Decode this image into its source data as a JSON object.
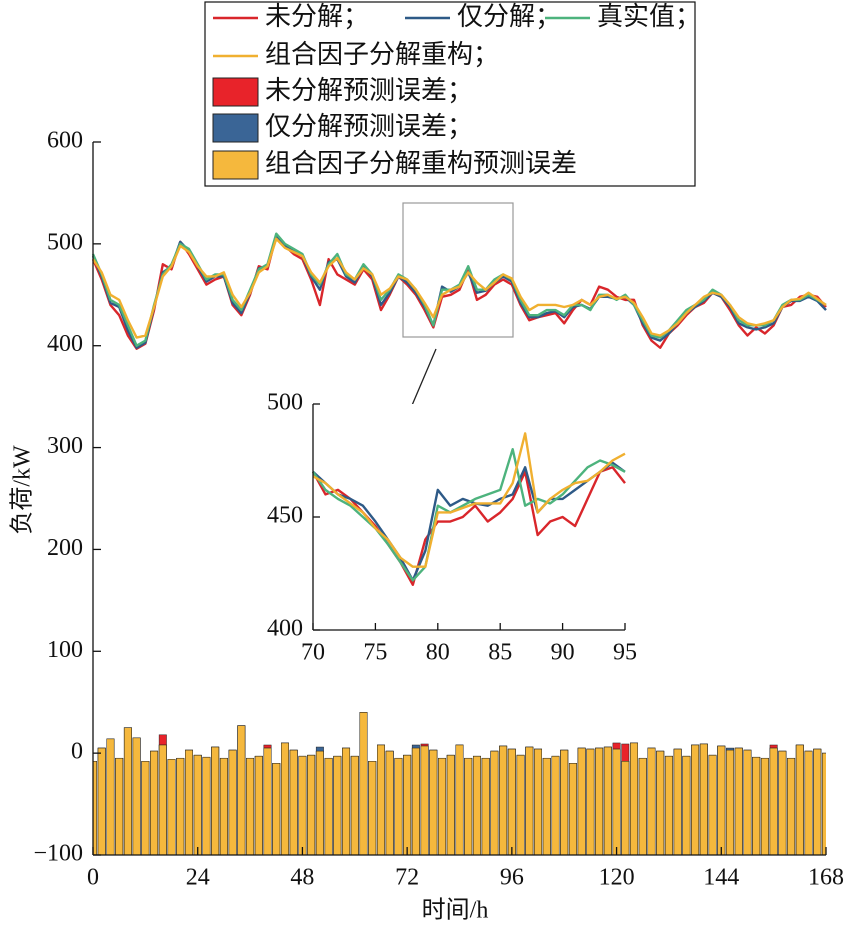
{
  "chart_data": [
    {
      "type": "line",
      "ylabel": "负荷/kW",
      "xlabel": "时间/h",
      "xlim": [
        0,
        168
      ],
      "xticks": [
        0,
        24,
        48,
        72,
        96,
        120,
        144,
        168
      ],
      "ylim": [
        -100,
        600
      ],
      "yticks": [
        {
          "value": -100,
          "label": "−100"
        },
        0,
        100,
        200,
        300,
        400,
        500,
        600
      ],
      "x": [
        0,
        2,
        4,
        6,
        8,
        10,
        12,
        14,
        16,
        18,
        20,
        22,
        24,
        26,
        28,
        30,
        32,
        34,
        36,
        38,
        40,
        42,
        44,
        46,
        48,
        50,
        52,
        54,
        56,
        58,
        60,
        62,
        64,
        66,
        68,
        70,
        72,
        74,
        76,
        78,
        80,
        82,
        84,
        86,
        88,
        90,
        92,
        94,
        96,
        98,
        100,
        102,
        104,
        106,
        108,
        110,
        112,
        114,
        116,
        118,
        120,
        122,
        124,
        126,
        128,
        130,
        132,
        134,
        136,
        138,
        140,
        142,
        144,
        146,
        148,
        150,
        152,
        154,
        156,
        158,
        160,
        162,
        164,
        166,
        168
      ],
      "series": [
        {
          "name": "未分解；",
          "type": "line",
          "color": "#d9262b",
          "values": [
            485,
            465,
            440,
            430,
            410,
            397,
            402,
            435,
            480,
            475,
            502,
            490,
            475,
            460,
            465,
            468,
            440,
            430,
            450,
            478,
            475,
            508,
            498,
            490,
            485,
            465,
            440,
            485,
            470,
            465,
            460,
            475,
            465,
            435,
            450,
            468,
            460,
            450,
            435,
            418,
            448,
            450,
            455,
            475,
            445,
            450,
            460,
            465,
            460,
            440,
            425,
            428,
            430,
            432,
            422,
            435,
            445,
            440,
            458,
            455,
            448,
            445,
            445,
            420,
            405,
            398,
            412,
            420,
            430,
            438,
            442,
            452,
            448,
            435,
            420,
            410,
            418,
            412,
            420,
            438,
            440,
            448,
            450,
            448,
            438
          ]
        },
        {
          "name": "仅分解；",
          "type": "line",
          "color": "#2e5a87",
          "values": [
            488,
            468,
            442,
            438,
            415,
            398,
            403,
            438,
            472,
            478,
            502,
            493,
            478,
            463,
            468,
            468,
            442,
            432,
            452,
            476,
            478,
            508,
            498,
            493,
            488,
            468,
            455,
            482,
            485,
            468,
            462,
            478,
            468,
            440,
            452,
            468,
            462,
            452,
            438,
            420,
            458,
            453,
            458,
            472,
            452,
            454,
            462,
            468,
            463,
            442,
            428,
            428,
            432,
            434,
            428,
            438,
            440,
            436,
            448,
            448,
            446,
            448,
            440,
            422,
            408,
            405,
            412,
            422,
            432,
            438,
            444,
            452,
            448,
            438,
            422,
            418,
            416,
            418,
            422,
            438,
            444,
            444,
            448,
            444,
            435
          ]
        },
        {
          "name": "真实值；",
          "type": "line",
          "color": "#4db37d",
          "values": [
            490,
            470,
            445,
            440,
            420,
            400,
            405,
            440,
            470,
            480,
            500,
            495,
            480,
            465,
            470,
            470,
            445,
            435,
            455,
            475,
            480,
            510,
            500,
            495,
            490,
            470,
            460,
            480,
            490,
            470,
            465,
            480,
            470,
            445,
            455,
            470,
            465,
            455,
            440,
            420,
            455,
            455,
            460,
            478,
            455,
            455,
            465,
            470,
            465,
            445,
            430,
            430,
            435,
            435,
            430,
            440,
            440,
            435,
            450,
            450,
            445,
            450,
            440,
            425,
            410,
            408,
            415,
            425,
            435,
            440,
            445,
            455,
            450,
            440,
            425,
            420,
            420,
            420,
            425,
            440,
            445,
            445,
            450,
            445,
            440
          ]
        },
        {
          "name": "组合因子分解重构；",
          "type": "line",
          "color": "#f0b030",
          "values": [
            485,
            472,
            450,
            445,
            425,
            408,
            410,
            438,
            468,
            478,
            498,
            492,
            478,
            468,
            468,
            472,
            450,
            438,
            452,
            472,
            478,
            505,
            496,
            492,
            488,
            472,
            462,
            478,
            486,
            472,
            465,
            476,
            470,
            450,
            456,
            468,
            465,
            455,
            442,
            428,
            450,
            455,
            458,
            472,
            462,
            455,
            462,
            470,
            466,
            448,
            435,
            440,
            440,
            440,
            438,
            440,
            445,
            440,
            448,
            450,
            446,
            448,
            442,
            428,
            412,
            410,
            415,
            422,
            432,
            440,
            448,
            452,
            450,
            440,
            428,
            422,
            420,
            422,
            425,
            438,
            445,
            446,
            452,
            446,
            440
          ]
        },
        {
          "name": "未分解预测误差；",
          "type": "bar",
          "color": "#e8232a",
          "values": [
            -8,
            5,
            14,
            -5,
            25,
            15,
            -8,
            2,
            18,
            -6,
            -5,
            3,
            -2,
            -4,
            6,
            -5,
            3,
            27,
            -5,
            -3,
            8,
            -10,
            10,
            3,
            -3,
            -2,
            2,
            -5,
            -3,
            5,
            -3,
            40,
            -8,
            8,
            2,
            -5,
            -2,
            5,
            9,
            3,
            -5,
            -2,
            8,
            -5,
            -3,
            -5,
            2,
            7,
            4,
            -2,
            6,
            4,
            -5,
            -3,
            3,
            -10,
            5,
            4,
            5,
            6,
            10,
            9,
            10,
            -5,
            5,
            2,
            -3,
            4,
            -3,
            8,
            9,
            -2,
            7,
            3,
            5,
            3,
            -4,
            -5,
            8,
            2,
            -5,
            8,
            2,
            4,
            0
          ]
        },
        {
          "name": "仅分解预测误差；",
          "type": "bar",
          "color": "#3a6596",
          "values": [
            -8,
            5,
            14,
            -5,
            25,
            15,
            -8,
            2,
            8,
            -6,
            -5,
            3,
            -2,
            -4,
            6,
            -5,
            3,
            27,
            -5,
            -3,
            5,
            -10,
            10,
            3,
            -3,
            -2,
            6,
            -5,
            -3,
            5,
            -3,
            40,
            -8,
            8,
            2,
            -5,
            -2,
            8,
            7,
            3,
            -5,
            -2,
            8,
            -5,
            -3,
            -5,
            2,
            7,
            4,
            -2,
            6,
            4,
            -5,
            -3,
            3,
            -10,
            5,
            4,
            5,
            6,
            4,
            -8,
            10,
            -5,
            5,
            2,
            -3,
            4,
            -3,
            8,
            9,
            -2,
            7,
            5,
            5,
            3,
            -4,
            -5,
            5,
            2,
            -5,
            8,
            2,
            4,
            0
          ]
        },
        {
          "name": "组合因子分解重构预测误差",
          "type": "bar",
          "color": "#f5b83d",
          "values": [
            -8,
            5,
            14,
            -5,
            25,
            15,
            -8,
            2,
            8,
            -6,
            -5,
            3,
            -2,
            -4,
            6,
            -5,
            3,
            27,
            -5,
            -3,
            5,
            -10,
            10,
            3,
            -3,
            -2,
            2,
            -5,
            -3,
            5,
            -3,
            40,
            -8,
            8,
            2,
            -5,
            -2,
            5,
            7,
            3,
            -5,
            -2,
            8,
            -5,
            -3,
            -5,
            2,
            7,
            4,
            -2,
            6,
            4,
            -5,
            -3,
            3,
            -10,
            5,
            4,
            5,
            6,
            4,
            -8,
            10,
            -5,
            5,
            2,
            -3,
            4,
            -3,
            8,
            9,
            -2,
            7,
            3,
            5,
            3,
            -4,
            -5,
            5,
            2,
            -5,
            8,
            2,
            4,
            0
          ]
        }
      ]
    },
    {
      "type": "line",
      "xlim": [
        70,
        95
      ],
      "xticks": [
        70,
        75,
        80,
        85,
        90,
        95
      ],
      "ylim": [
        400,
        500
      ],
      "yticks": [
        400,
        450,
        500
      ],
      "x": [
        70,
        71,
        72,
        73,
        74,
        75,
        76,
        77,
        78,
        79,
        80,
        81,
        82,
        83,
        84,
        85,
        86,
        87,
        88,
        89,
        90,
        91,
        92,
        93,
        94,
        95
      ],
      "series": [
        {
          "type": "line",
          "color": "#d9262b",
          "values": [
            470,
            460,
            462,
            458,
            452,
            446,
            438,
            430,
            420,
            440,
            448,
            448,
            450,
            455,
            448,
            452,
            458,
            470,
            442,
            448,
            450,
            446,
            458,
            470,
            472,
            465
          ]
        },
        {
          "type": "line",
          "color": "#2e5a87",
          "values": [
            470,
            465,
            460,
            458,
            455,
            448,
            440,
            432,
            422,
            435,
            462,
            455,
            458,
            456,
            455,
            458,
            460,
            472,
            452,
            458,
            458,
            462,
            466,
            470,
            474,
            470
          ]
        },
        {
          "type": "line",
          "color": "#4db37d",
          "values": [
            470,
            462,
            458,
            455,
            450,
            445,
            438,
            430,
            422,
            428,
            455,
            452,
            455,
            458,
            460,
            462,
            480,
            455,
            458,
            456,
            460,
            466,
            472,
            475,
            473,
            470
          ]
        },
        {
          "type": "line",
          "color": "#f0b030",
          "values": [
            468,
            465,
            460,
            456,
            452,
            445,
            440,
            432,
            428,
            428,
            452,
            452,
            454,
            456,
            456,
            456,
            465,
            487,
            452,
            458,
            462,
            465,
            466,
            470,
            475,
            478
          ]
        }
      ]
    }
  ]
}
